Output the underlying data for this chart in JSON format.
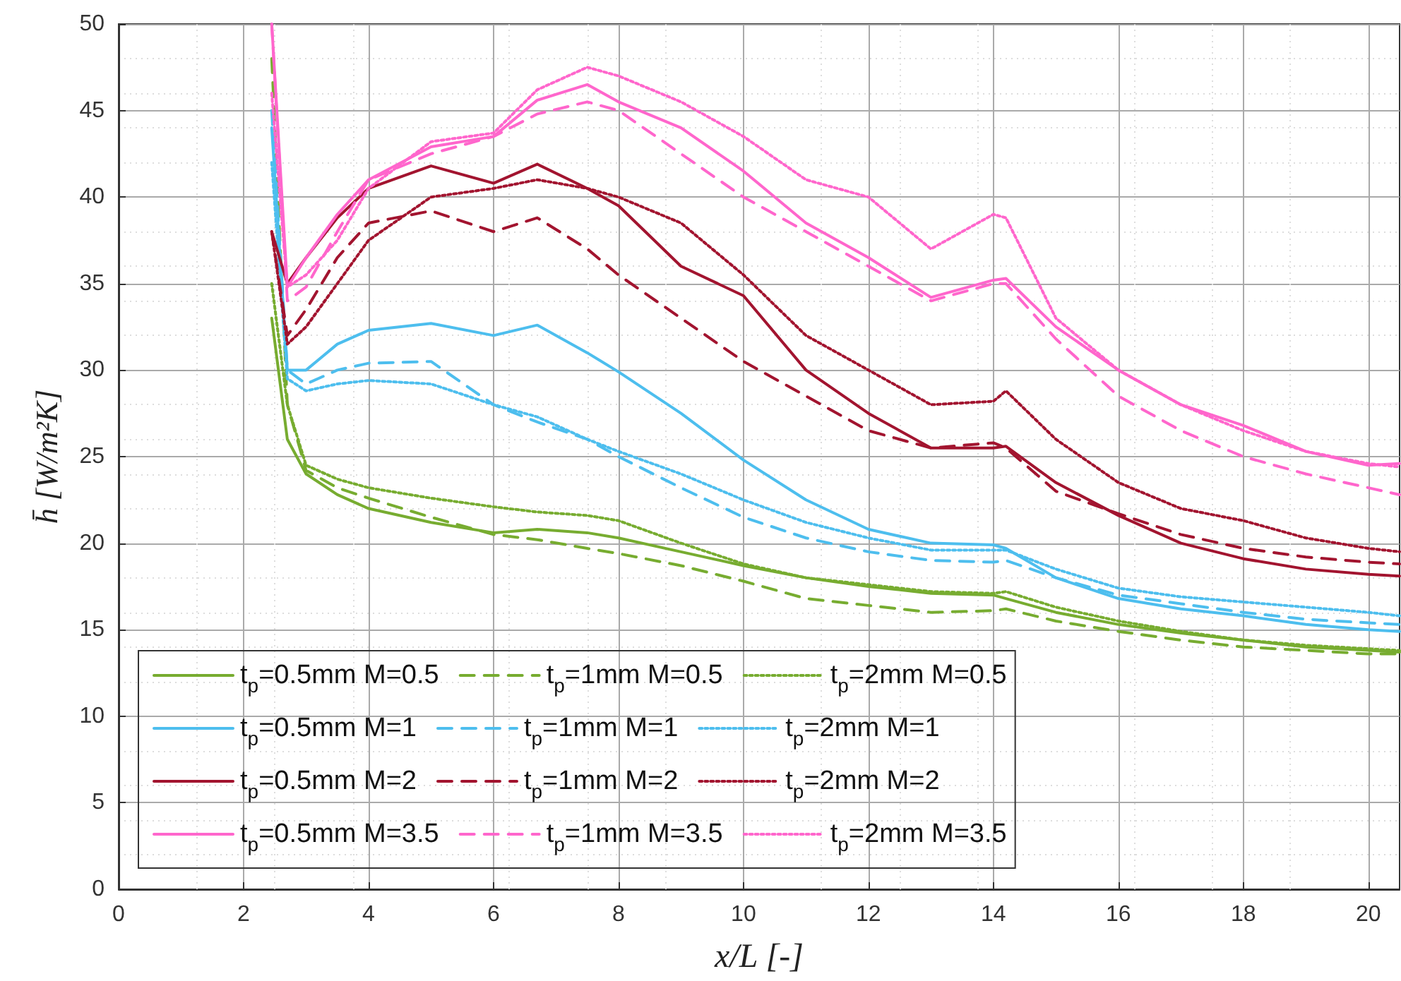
{
  "chart_data": {
    "type": "line",
    "xlabel": "x/L [-]",
    "ylabel": "h̄ [W/m²K]",
    "x": [
      2.45,
      2.7,
      3,
      3.5,
      4,
      5,
      6,
      6.7,
      7.5,
      8,
      9,
      10,
      11,
      12,
      13,
      14,
      14.2,
      15,
      16,
      17,
      18,
      19,
      20,
      20.5
    ],
    "xlim": [
      0,
      20.5
    ],
    "xticks": [
      0,
      2,
      4,
      6,
      8,
      10,
      12,
      14,
      16,
      18,
      20
    ],
    "ylim": [
      0,
      50
    ],
    "yticks": [
      0,
      5,
      10,
      15,
      20,
      25,
      30,
      35,
      40,
      45,
      50
    ],
    "grid": true,
    "legend": "bottom left",
    "marker": "none",
    "series": [
      {
        "name": "t$_{p}$=0.5mm M=0.5",
        "color": "#77ac30",
        "line_style": "solid",
        "values": [
          33,
          26,
          24,
          22.8,
          22,
          21.2,
          20.6,
          20.8,
          20.6,
          20.3,
          19.5,
          18.7,
          18,
          17.5,
          17.1,
          17,
          16.8,
          16,
          15.3,
          14.8,
          14.4,
          14,
          13.8,
          13.7
        ]
      },
      {
        "name": "t$_{p}$=1mm M=0.5",
        "color": "#77ac30",
        "line_style": "dashed",
        "values": [
          48,
          28,
          24.2,
          23.2,
          22.6,
          21.5,
          20.5,
          20.2,
          19.7,
          19.4,
          18.7,
          17.8,
          16.8,
          16.4,
          16,
          16.1,
          16.2,
          15.5,
          14.9,
          14.4,
          14,
          13.8,
          13.6,
          13.6
        ]
      },
      {
        "name": "t$_{p}$=2mm M=0.5",
        "color": "#77ac30",
        "line_style": "dotted",
        "values": [
          35,
          28,
          24.5,
          23.7,
          23.2,
          22.6,
          22.1,
          21.8,
          21.6,
          21.3,
          20,
          18.8,
          18,
          17.6,
          17.2,
          17.1,
          17.2,
          16.3,
          15.5,
          14.9,
          14.4,
          14.1,
          13.9,
          13.8
        ]
      },
      {
        "name": "t$_{p}$=0.5mm M=1",
        "color": "#4dbeee",
        "line_style": "solid",
        "values": [
          44,
          30,
          30,
          31.5,
          32.3,
          32.7,
          32,
          32.6,
          31,
          29.9,
          27.5,
          24.8,
          22.5,
          20.8,
          20,
          19.9,
          19.7,
          18,
          16.8,
          16.2,
          15.8,
          15.3,
          15,
          14.9
        ]
      },
      {
        "name": "t$_{p}$=1mm M=1",
        "color": "#4dbeee",
        "line_style": "dashed",
        "values": [
          45,
          30,
          29.2,
          30,
          30.4,
          30.5,
          28,
          27,
          26,
          25,
          23.2,
          21.5,
          20.3,
          19.5,
          19,
          18.9,
          19,
          18,
          17,
          16.5,
          16,
          15.6,
          15.4,
          15.3
        ]
      },
      {
        "name": "t$_{p}$=2mm M=1",
        "color": "#4dbeee",
        "line_style": "dotted",
        "values": [
          42,
          29.5,
          28.8,
          29.2,
          29.4,
          29.2,
          28,
          27.3,
          26,
          25.3,
          24,
          22.5,
          21.2,
          20.3,
          19.6,
          19.6,
          19.6,
          18.5,
          17.4,
          16.9,
          16.6,
          16.3,
          16,
          15.8
        ]
      },
      {
        "name": "t$_{p}$=0.5mm M=2",
        "color": "#a2142f",
        "line_style": "solid",
        "values": [
          38,
          35,
          36.5,
          38.8,
          40.5,
          41.8,
          40.8,
          41.9,
          40.5,
          39.5,
          36,
          34.3,
          30,
          27.5,
          25.5,
          25.5,
          25.6,
          23.5,
          21.6,
          20,
          19.1,
          18.5,
          18.2,
          18.1
        ]
      },
      {
        "name": "t$_{p}$=1mm M=2",
        "color": "#a2142f",
        "line_style": "dashed",
        "values": [
          38,
          32,
          33.5,
          36.5,
          38.5,
          39.2,
          38,
          38.8,
          37,
          35.5,
          33,
          30.5,
          28.5,
          26.5,
          25.5,
          25.8,
          25.5,
          23,
          21.7,
          20.5,
          19.7,
          19.2,
          18.9,
          18.8
        ]
      },
      {
        "name": "t$_{p}$=2mm M=2",
        "color": "#a2142f",
        "line_style": "dotted",
        "values": [
          38,
          31.5,
          32.5,
          35,
          37.5,
          40,
          40.5,
          41,
          40.5,
          40,
          38.5,
          35.5,
          32,
          30,
          28,
          28.2,
          28.8,
          26,
          23.5,
          22,
          21.3,
          20.3,
          19.7,
          19.5
        ]
      },
      {
        "name": "t$_{p}$=0.5mm M=3.5",
        "color": "#ff66cc",
        "line_style": "solid",
        "values": [
          50,
          34.8,
          36.5,
          39,
          41,
          42.9,
          43.5,
          45.6,
          46.5,
          45.5,
          44,
          41.5,
          38.5,
          36.5,
          34.2,
          35.2,
          35.3,
          32.5,
          30,
          28,
          26.8,
          25.3,
          24.5,
          24.6
        ]
      },
      {
        "name": "t$_{p}$=1mm M=3.5",
        "color": "#ff66cc",
        "line_style": "dashed",
        "values": [
          50,
          34,
          34.8,
          38,
          41,
          42.5,
          43.5,
          44.8,
          45.5,
          45,
          42.5,
          40,
          38,
          36,
          34,
          35,
          35,
          31.8,
          28.5,
          26.5,
          25,
          24,
          23.2,
          22.8
        ]
      },
      {
        "name": "t$_{p}$=2mm M=3.5",
        "color": "#ff66cc",
        "line_style": "dotted",
        "values": [
          46,
          34.8,
          35.5,
          37.5,
          40.5,
          43.2,
          43.7,
          46.2,
          47.5,
          47,
          45.5,
          43.5,
          41,
          40,
          37,
          39,
          38.8,
          33,
          30,
          28,
          26.5,
          25.3,
          24.6,
          24.4
        ]
      }
    ]
  }
}
